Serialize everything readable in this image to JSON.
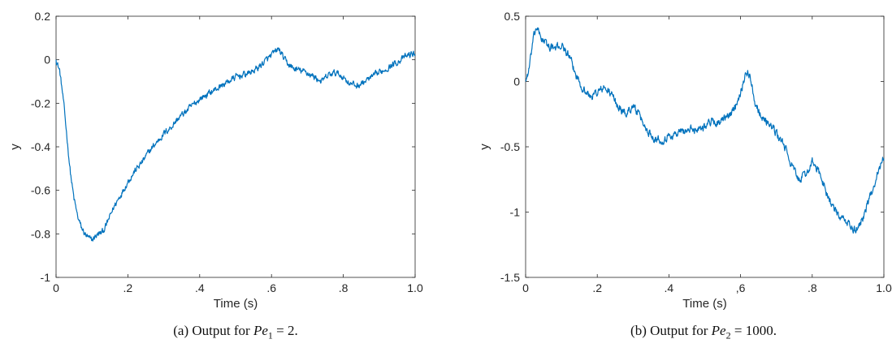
{
  "chart_data": [
    {
      "type": "line",
      "ylabel": "y",
      "xlabel": "Time (s)",
      "xlim": [
        0,
        1
      ],
      "ylim": [
        -1,
        0.2
      ],
      "xticks": [
        0,
        0.2,
        0.4,
        0.6,
        0.8,
        1.0
      ],
      "xtick_labels": [
        "0",
        ".2",
        ".4",
        ".6",
        ".8",
        "1.0"
      ],
      "yticks": [
        -1,
        -0.8,
        -0.6,
        -0.4,
        -0.2,
        0,
        0.2
      ],
      "ytick_labels": [
        "-1",
        "-0.8",
        "-0.6",
        "-0.4",
        "-0.2",
        "0",
        "0.2"
      ],
      "color": "#0072BD",
      "noise_amplitude": 0.012,
      "series": [
        {
          "x": [
            0,
            0.01,
            0.02,
            0.03,
            0.04,
            0.05,
            0.06,
            0.07,
            0.08,
            0.09,
            0.1,
            0.11,
            0.12,
            0.13,
            0.14,
            0.15,
            0.16,
            0.18,
            0.2,
            0.22,
            0.24,
            0.26,
            0.28,
            0.3,
            0.32,
            0.34,
            0.36,
            0.38,
            0.4,
            0.42,
            0.44,
            0.46,
            0.48,
            0.5,
            0.52,
            0.54,
            0.56,
            0.58,
            0.6,
            0.62,
            0.63,
            0.64,
            0.66,
            0.68,
            0.7,
            0.72,
            0.74,
            0.76,
            0.78,
            0.8,
            0.82,
            0.84,
            0.86,
            0.88,
            0.9,
            0.92,
            0.94,
            0.96,
            0.98,
            1.0
          ],
          "y": [
            0.0,
            -0.05,
            -0.18,
            -0.35,
            -0.52,
            -0.64,
            -0.72,
            -0.77,
            -0.8,
            -0.82,
            -0.83,
            -0.81,
            -0.8,
            -0.79,
            -0.76,
            -0.72,
            -0.68,
            -0.62,
            -0.56,
            -0.51,
            -0.47,
            -0.42,
            -0.38,
            -0.34,
            -0.31,
            -0.27,
            -0.24,
            -0.21,
            -0.18,
            -0.16,
            -0.14,
            -0.12,
            -0.1,
            -0.08,
            -0.07,
            -0.06,
            -0.04,
            -0.01,
            0.02,
            0.05,
            0.02,
            -0.01,
            -0.04,
            -0.05,
            -0.06,
            -0.08,
            -0.1,
            -0.07,
            -0.06,
            -0.08,
            -0.11,
            -0.12,
            -0.1,
            -0.08,
            -0.06,
            -0.04,
            -0.02,
            0.0,
            0.02,
            0.03
          ]
        }
      ]
    },
    {
      "type": "line",
      "ylabel": "y",
      "xlabel": "Time (s)",
      "xlim": [
        0,
        1
      ],
      "ylim": [
        -1.5,
        0.5
      ],
      "xticks": [
        0,
        0.2,
        0.4,
        0.6,
        0.8,
        1.0
      ],
      "xtick_labels": [
        "0",
        ".2",
        ".4",
        ",6",
        ".8",
        "1.0"
      ],
      "yticks": [
        -1.5,
        -1,
        -0.5,
        0,
        0.5
      ],
      "ytick_labels": [
        "-1.5",
        "-1",
        "-0.5",
        "0",
        "0.5"
      ],
      "color": "#0072BD",
      "noise_amplitude": 0.025,
      "series": [
        {
          "x": [
            0,
            0.01,
            0.02,
            0.03,
            0.04,
            0.06,
            0.08,
            0.1,
            0.12,
            0.14,
            0.16,
            0.18,
            0.2,
            0.22,
            0.24,
            0.26,
            0.28,
            0.3,
            0.32,
            0.34,
            0.36,
            0.38,
            0.4,
            0.42,
            0.44,
            0.46,
            0.48,
            0.5,
            0.52,
            0.54,
            0.56,
            0.58,
            0.6,
            0.61,
            0.62,
            0.63,
            0.64,
            0.66,
            0.68,
            0.7,
            0.72,
            0.74,
            0.76,
            0.78,
            0.8,
            0.82,
            0.84,
            0.86,
            0.88,
            0.9,
            0.91,
            0.92,
            0.94,
            0.96,
            0.98,
            1.0
          ],
          "y": [
            0.0,
            0.1,
            0.3,
            0.42,
            0.35,
            0.28,
            0.25,
            0.28,
            0.2,
            0.05,
            -0.05,
            -0.12,
            -0.08,
            -0.05,
            -0.1,
            -0.2,
            -0.25,
            -0.18,
            -0.28,
            -0.38,
            -0.43,
            -0.45,
            -0.42,
            -0.4,
            -0.38,
            -0.37,
            -0.36,
            -0.34,
            -0.3,
            -0.32,
            -0.28,
            -0.22,
            -0.08,
            0.02,
            0.08,
            0.0,
            -0.15,
            -0.28,
            -0.32,
            -0.4,
            -0.48,
            -0.62,
            -0.75,
            -0.72,
            -0.62,
            -0.7,
            -0.85,
            -0.98,
            -1.05,
            -1.08,
            -1.12,
            -1.15,
            -1.05,
            -0.9,
            -0.72,
            -0.58
          ]
        }
      ]
    }
  ],
  "captions": [
    {
      "prefix": "(a)  Output for ",
      "var": "Pe",
      "sub": "1",
      "suffix": " = 2."
    },
    {
      "prefix": "(b)  Output for ",
      "var": "Pe",
      "sub": "2",
      "suffix": " = 1000."
    }
  ]
}
